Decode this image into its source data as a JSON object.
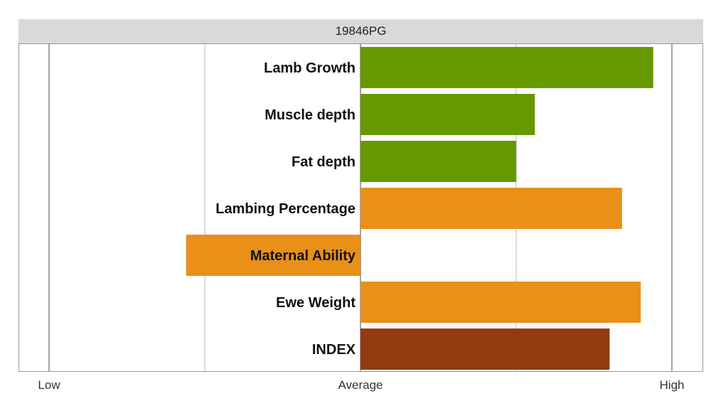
{
  "panel_title": "19846PG",
  "chart_data": {
    "type": "bar",
    "orientation": "horizontal",
    "title": "19846PG",
    "xlabel": "",
    "ylabel": "",
    "xlim": [
      -1,
      1
    ],
    "x_ticks": [
      {
        "value": -1,
        "label": "Low"
      },
      {
        "value": 0,
        "label": "Average"
      },
      {
        "value": 1,
        "label": "High"
      }
    ],
    "grid": true,
    "categories": [
      "Lamb Growth",
      "Muscle depth",
      "Fat depth",
      "Lambing Percentage",
      "Maternal Ability",
      "Ewe Weight",
      "INDEX"
    ],
    "values": [
      0.94,
      0.56,
      0.5,
      0.84,
      -0.56,
      0.9,
      0.8
    ],
    "colors": [
      "#669900",
      "#669900",
      "#669900",
      "#e89018",
      "#e89018",
      "#e89018",
      "#943a10"
    ]
  }
}
